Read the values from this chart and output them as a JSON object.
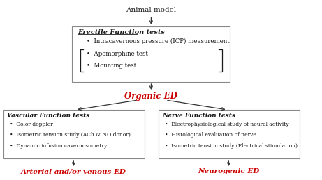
{
  "background_color": "#ffffff",
  "title_text": "Animal model",
  "top_box": {
    "title": "Erectile Function tests",
    "items": [
      "Intracavernous pressure (ICP) measurement",
      "Apomorphine test",
      "Mounting test"
    ]
  },
  "organic_ed": "Organic ED",
  "left_box": {
    "title": "Vascular Function tests",
    "items": [
      "Color doppler",
      "Isometric tension study (ACh & NO donor)",
      "Dynamic infusion cavernosometry"
    ]
  },
  "right_box": {
    "title": "Nerve Function tests",
    "items": [
      "Electrophysiological study of neural activity",
      "Histological evaluation of nerve",
      "Isometric tension study (Electrical stimulation)"
    ]
  },
  "left_bottom": "Arterial and/or venous ED",
  "right_bottom": "Neurogenic ED",
  "red_color": "#cc0000",
  "black_color": "#1a1a1a",
  "box_edge_color": "#888888",
  "arrow_color": "#333333"
}
